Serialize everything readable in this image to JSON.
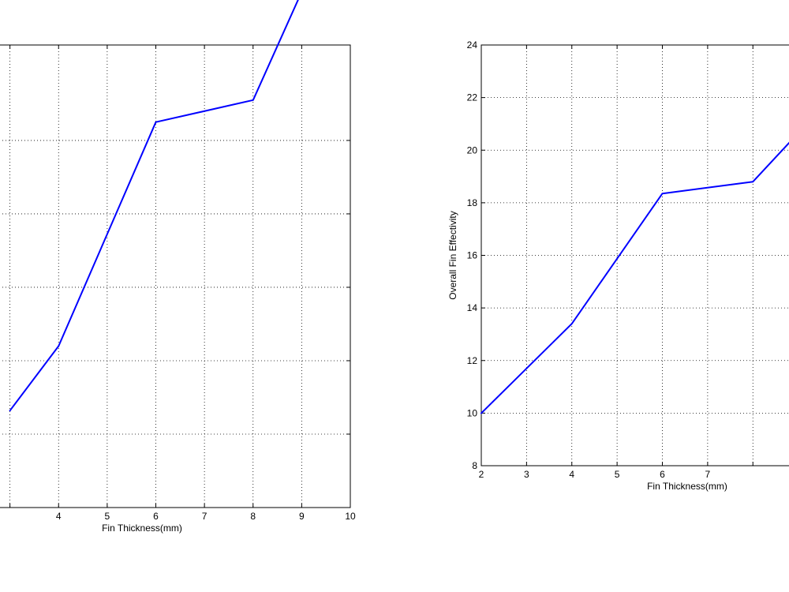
{
  "chart_data": [
    {
      "type": "line",
      "title": "",
      "xlabel": "Fin Thickness(mm)",
      "ylabel": "",
      "xlim": [
        2,
        10
      ],
      "ylim": [
        -1,
        5.3
      ],
      "grid": true,
      "x_ticks": [
        4,
        5,
        6,
        7,
        8,
        9,
        10
      ],
      "x_tick_labels": [
        "4",
        "5",
        "6",
        "7",
        "8",
        "9",
        "10"
      ],
      "y_ticks": [],
      "y_tick_labels": [],
      "series": [
        {
          "color": "#0000ff",
          "x": [
            3.0,
            4,
            6,
            8,
            10
          ],
          "y": [
            0.32,
            1.2,
            4.25,
            4.55,
            7.5
          ]
        }
      ]
    },
    {
      "type": "line",
      "title": "",
      "xlabel": "Fin Thickness(mm)",
      "ylabel": "Overall Fin Effectivity",
      "xlim": [
        2,
        10
      ],
      "ylim": [
        8,
        24
      ],
      "grid": true,
      "x_ticks": [
        2,
        3,
        4,
        5,
        6,
        7
      ],
      "x_tick_labels": [
        "2",
        "3",
        "4",
        "5",
        "6",
        "7"
      ],
      "y_ticks": [
        8,
        10,
        12,
        14,
        16,
        18,
        20,
        22,
        24
      ],
      "y_tick_labels": [
        "8",
        "10",
        "12",
        "14",
        "16",
        "18",
        "20",
        "22",
        "24"
      ],
      "series": [
        {
          "color": "#0000ff",
          "x": [
            2,
            4,
            6,
            8,
            10
          ],
          "y": [
            10.0,
            13.4,
            18.35,
            18.8,
            22.5
          ]
        }
      ]
    }
  ]
}
